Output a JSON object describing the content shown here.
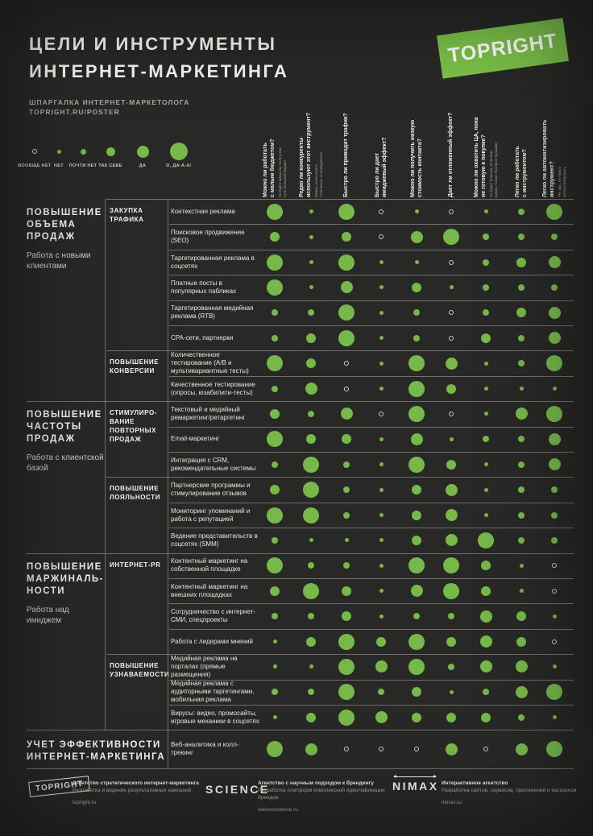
{
  "header": {
    "title_line1": "ЦЕЛИ И ИНСТРУМЕНТЫ",
    "title_line2": "ИНТЕРНЕТ-МАРКЕТИНГА",
    "subtitle_line1": "ШПАРГАЛКА ИНТЕРНЕТ-МАРКЕТОЛОГА",
    "subtitle_line2": "TOPRIGHT.RU/POSTER",
    "logo": "TOPRIGHT"
  },
  "colors": {
    "background": "#282826",
    "dot_green": "#76b84a",
    "logo_green": "#7cc24b",
    "text": "#f2f2ef",
    "muted": "#a8a8a2",
    "line": "#8d8d88"
  },
  "legend": {
    "items": [
      {
        "label": "ВООБЩЕ НЕТ",
        "value": 0
      },
      {
        "label": "НЕТ",
        "value": 1
      },
      {
        "label": "ПОЧТИ НЕТ",
        "value": 2
      },
      {
        "label": "ТАК СЕБЕ",
        "value": 3
      },
      {
        "label": "ДА",
        "value": 4
      },
      {
        "label": "О, ДА-А-А!",
        "value": 5
      }
    ]
  },
  "columns": [
    {
      "q": [
        "Можно ли работать",
        "с малым бюджетом?"
      ],
      "sub": [
        "Не будет минусом, если у вас",
        "есть большой бюджет"
      ]
    },
    {
      "q": [
        "Редко ли конкуренты",
        "используют этот инструмент?"
      ],
      "sub": [
        "Важно, если хотите",
        "отличаться от конкурентов"
      ]
    },
    {
      "q": [
        "Быстро ли приводит трафик?"
      ]
    },
    {
      "q": [
        "Быстро ли дает",
        "имиджевый эффект?"
      ]
    },
    {
      "q": [
        "Можно ли получить низкую",
        "стоимость контакта?"
      ]
    },
    {
      "q": [
        "Дает ли отложенный эффект?"
      ]
    },
    {
      "q": [
        "Можно ли охватить ЦА, пока",
        "не готовую к покупке?"
      ],
      "sub": [
        "Не будет плюсом, если вам",
        "нужны только быстрые продажи"
      ]
    },
    {
      "q": [
        "Легко ли работать",
        "с инструментом?"
      ]
    },
    {
      "q": [
        "Легко ли автоматизировать",
        "инструмент?"
      ],
      "sub": [
        "PR, увы, не нужно",
        "автоматизировать"
      ]
    }
  ],
  "sections": [
    {
      "goal": "ПОВЫШЕНИЕ ОБЪЕМА ПРОДАЖ",
      "note": "Работа с новыми клиентами",
      "subsections": [
        {
          "label": "ЗАКУПКА ТРАФИКА",
          "rows": [
            0,
            1,
            2,
            3,
            4,
            5
          ]
        },
        {
          "label": "ПОВЫШЕНИЕ КОНВЕРСИИ",
          "rows": [
            6,
            7
          ]
        }
      ]
    },
    {
      "goal": "ПОВЫШЕНИЕ ЧАСТОТЫ ПРОДАЖ",
      "note": "Работа с клиентской базой",
      "subsections": [
        {
          "label": "СТИМУЛИРО- ВАНИЕ ПОВТОРНЫХ ПРОДАЖ",
          "rows": [
            8,
            9,
            10
          ]
        },
        {
          "label": "ПОВЫШЕНИЕ ЛОЯЛЬНОСТИ",
          "rows": [
            11,
            12,
            13
          ]
        }
      ]
    },
    {
      "goal": "ПОВЫШЕНИЕ МАРЖИНАЛЬ- НОСТИ",
      "note": "Работа над имиджем",
      "subsections": [
        {
          "label": "ИНТЕРНЕТ-PR",
          "rows": [
            14,
            15,
            16,
            17
          ]
        },
        {
          "label": "ПОВЫШЕНИЕ УЗНАВАЕМОСТИ",
          "rows": [
            18,
            19,
            20
          ]
        }
      ]
    },
    {
      "goal": "УЧЕТ ЭФФЕКТИВНОСТИ ИНТЕРНЕТ-МАРКЕТИНГА",
      "note": "",
      "wide": true,
      "subsections": [
        {
          "label": "",
          "rows": [
            21
          ]
        }
      ]
    }
  ],
  "chart_data": {
    "type": "heatmap",
    "title": "ЦЕЛИ И ИНСТРУМЕНТЫ ИНТЕРНЕТ-МАРКЕТИНГА",
    "subtitle": "ШПАРГАЛКА ИНТЕРНЕТ-МАРКЕТОЛОГА TOPRIGHT.RU/POSTER",
    "scale": {
      "0": "вообще нет",
      "1": "нет",
      "2": "почти нет",
      "3": "так себе",
      "4": "да",
      "5": "о, да-а-а!"
    },
    "columns": [
      "Можно ли работать с малым бюджетом?",
      "Редко ли конкуренты используют этот инструмент?",
      "Быстро ли приводит трафик?",
      "Быстро ли дает имиджевый эффект?",
      "Можно ли получить низкую стоимость контакта?",
      "Дает ли отложенный эффект?",
      "Можно ли охватить ЦА, пока не готовую к покупке?",
      "Легко ли работать с инструментом?",
      "Легко ли автоматизировать инструмент?"
    ],
    "rows": [
      {
        "name": "Контекстная реклама",
        "values": [
          5,
          1,
          5,
          0,
          1,
          0,
          1,
          2,
          5
        ]
      },
      {
        "name": "Поисковое продвижение (SEO)",
        "values": [
          3,
          1,
          3,
          0,
          4,
          5,
          2,
          2,
          2
        ]
      },
      {
        "name": "Таргетированная реклама в соцсетях",
        "values": [
          5,
          1,
          5,
          1,
          1,
          0,
          2,
          3,
          4
        ]
      },
      {
        "name": "Платные посты в популярных пабликах",
        "values": [
          5,
          1,
          4,
          1,
          3,
          1,
          2,
          2,
          2
        ]
      },
      {
        "name": "Таргетированная медийная реклама (RTB)",
        "values": [
          2,
          2,
          5,
          1,
          2,
          0,
          2,
          3,
          4
        ]
      },
      {
        "name": "CPA-сети, партнерки",
        "values": [
          2,
          3,
          5,
          1,
          2,
          0,
          3,
          2,
          4
        ]
      },
      {
        "name": "Количественное тестирование (A/B и мультивариантные тесты)",
        "values": [
          5,
          3,
          0,
          1,
          5,
          4,
          1,
          2,
          5
        ]
      },
      {
        "name": "Качественное тестирование (опросы, юзабилити-тесты)",
        "values": [
          2,
          4,
          0,
          1,
          5,
          3,
          1,
          1,
          1
        ]
      },
      {
        "name": "Текстовый и медийный ремаркетинг/ретаргетинг",
        "values": [
          3,
          2,
          4,
          0,
          5,
          0,
          1,
          4,
          5
        ]
      },
      {
        "name": "Email-маркетинг",
        "values": [
          5,
          3,
          3,
          1,
          4,
          1,
          2,
          2,
          4
        ]
      },
      {
        "name": "Интеграция с CRM, рекомендательные системы",
        "values": [
          2,
          5,
          2,
          1,
          5,
          3,
          1,
          2,
          4
        ]
      },
      {
        "name": "Партнерские программы и стимулирование отзывов",
        "values": [
          3,
          5,
          2,
          1,
          3,
          4,
          1,
          2,
          2
        ]
      },
      {
        "name": "Мониторинг упоминаний и работа с репутацией",
        "values": [
          5,
          5,
          2,
          1,
          3,
          4,
          1,
          2,
          2
        ]
      },
      {
        "name": "Ведение представительств в соцсетях (SMM)",
        "values": [
          2,
          1,
          1,
          1,
          3,
          4,
          5,
          2,
          2
        ]
      },
      {
        "name": "Контентный маркетинг на собственной площадке",
        "values": [
          5,
          2,
          2,
          1,
          5,
          5,
          3,
          1,
          0
        ]
      },
      {
        "name": "Контентный маркетинг на внешних площадках",
        "values": [
          3,
          5,
          3,
          1,
          4,
          5,
          3,
          1,
          0
        ]
      },
      {
        "name": "Сотрудничество с интернет-СМИ, спецпроекты",
        "values": [
          2,
          2,
          3,
          1,
          2,
          2,
          4,
          3,
          1
        ]
      },
      {
        "name": "Работа с лидерами мнений",
        "values": [
          1,
          3,
          5,
          3,
          5,
          3,
          4,
          3,
          0
        ]
      },
      {
        "name": "Медийная реклама на порталах (прямые размещения)",
        "values": [
          1,
          1,
          5,
          4,
          5,
          2,
          4,
          4,
          1
        ]
      },
      {
        "name": "Медийная реклама с аудиторными таргетингами, мобильная реклама",
        "values": [
          2,
          2,
          5,
          2,
          3,
          1,
          2,
          4,
          5
        ]
      },
      {
        "name": "Вирусы: видео, промосайты, игровые механики в соцсетях",
        "values": [
          1,
          3,
          5,
          4,
          3,
          3,
          3,
          2,
          1
        ]
      },
      {
        "name": "Веб-аналитика и колл-трекинг",
        "values": [
          5,
          4,
          0,
          0,
          0,
          4,
          0,
          4,
          5
        ]
      }
    ]
  },
  "footer": [
    {
      "logo": "TOPRIGHT",
      "line1": "Агентство стратегического интернет-маркетинга",
      "line2": "Разработка и ведение результативных кампаний",
      "url": "topright.ru"
    },
    {
      "logo": "SCIENCE",
      "line1": "Агентство с научным подходом к брендингу",
      "line2": "Разработка платформ комплексной идентификации брендов",
      "url": "welovescience.ru"
    },
    {
      "logo": "NIMAX",
      "line1": "Интерактивное агентство",
      "line2": "Разработка сайтов, сервисов, приложений и магазинов",
      "url": "nimax.ru"
    }
  ]
}
